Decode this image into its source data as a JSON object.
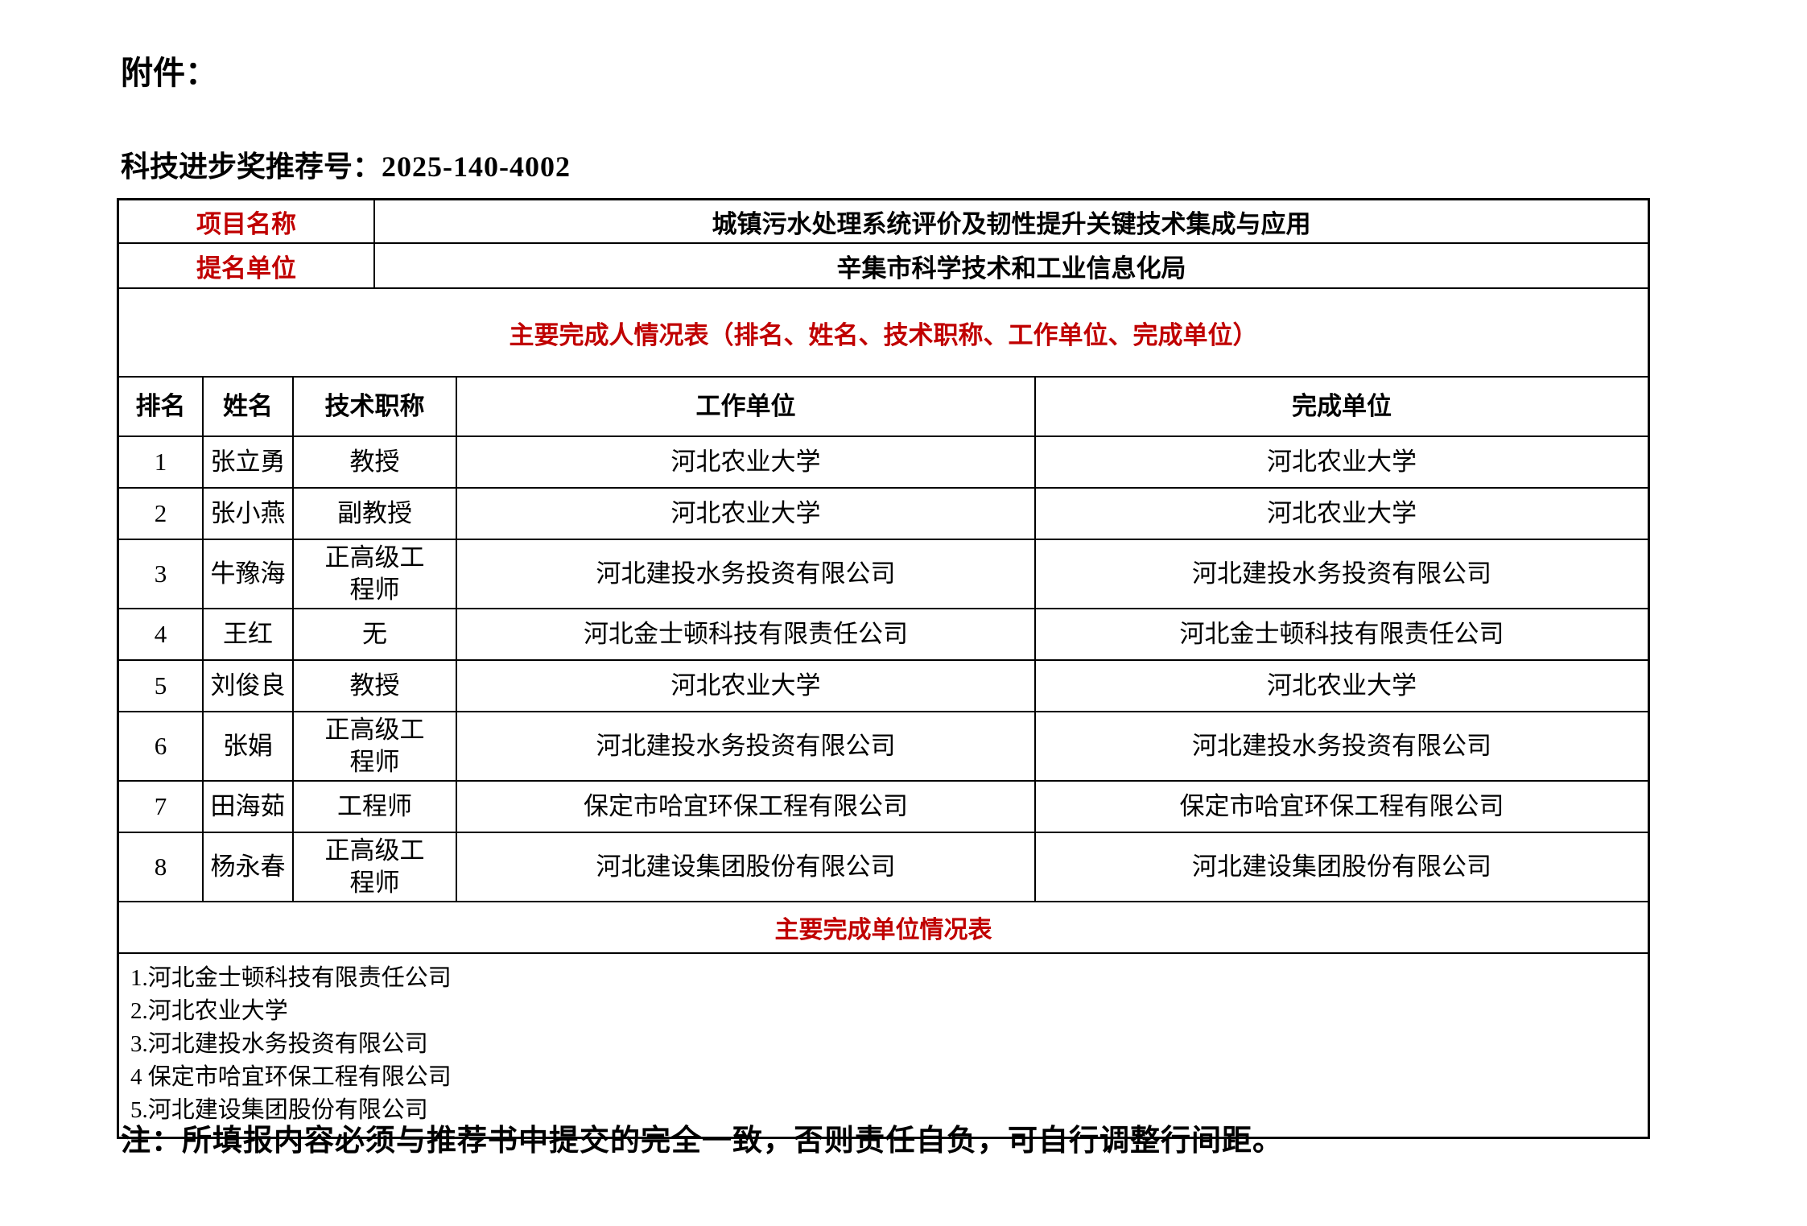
{
  "page": {
    "attachment_label": "附件：",
    "recommendation": {
      "label": "科技进步奖推荐号：",
      "number": "2025-140-4002"
    },
    "note": "注：所填报内容必须与推荐书中提交的完全一致，否则责任自负，可自行调整行间距。"
  },
  "table": {
    "project": {
      "label": "项目名称",
      "value": "城镇污水处理系统评价及韧性提升关键技术集成与应用"
    },
    "nominator": {
      "label": "提名单位",
      "value": "辛集市科学技术和工业信息化局"
    },
    "people_header": "主要完成人情况表（排名、姓名、技术职称、工作单位、完成单位）",
    "people_columns": {
      "rank": "排名",
      "name": "姓名",
      "title": "技术职称",
      "work_unit": "工作单位",
      "completion_unit": "完成单位"
    },
    "people": [
      {
        "rank": "1",
        "name": "张立勇",
        "title": "教授",
        "work_unit": "河北农业大学",
        "completion_unit": "河北农业大学"
      },
      {
        "rank": "2",
        "name": "张小燕",
        "title": "副教授",
        "work_unit": "河北农业大学",
        "completion_unit": "河北农业大学"
      },
      {
        "rank": "3",
        "name": "牛豫海",
        "title": "正高级工程师",
        "work_unit": "河北建投水务投资有限公司",
        "completion_unit": "河北建投水务投资有限公司"
      },
      {
        "rank": "4",
        "name": "王红",
        "title": "无",
        "work_unit": "河北金士顿科技有限责任公司",
        "completion_unit": "河北金士顿科技有限责任公司"
      },
      {
        "rank": "5",
        "name": "刘俊良",
        "title": "教授",
        "work_unit": "河北农业大学",
        "completion_unit": "河北农业大学"
      },
      {
        "rank": "6",
        "name": "张娟",
        "title": "正高级工程师",
        "work_unit": "河北建投水务投资有限公司",
        "completion_unit": "河北建投水务投资有限公司"
      },
      {
        "rank": "7",
        "name": "田海茹",
        "title": "工程师",
        "work_unit": "保定市哈宜环保工程有限公司",
        "completion_unit": "保定市哈宜环保工程有限公司"
      },
      {
        "rank": "8",
        "name": "杨永春",
        "title": "正高级工程师",
        "work_unit": "河北建设集团股份有限公司",
        "completion_unit": "河北建设集团股份有限公司"
      }
    ],
    "units_header": "主要完成单位情况表",
    "units": [
      "1.河北金士顿科技有限责任公司",
      "2.河北农业大学",
      "3.河北建投水务投资有限公司",
      "4 保定市哈宜环保工程有限公司",
      "5.河北建设集团股份有限公司"
    ]
  },
  "colors": {
    "accent_red": "#C00000",
    "border": "#000000",
    "background": "#FFFFFF"
  }
}
